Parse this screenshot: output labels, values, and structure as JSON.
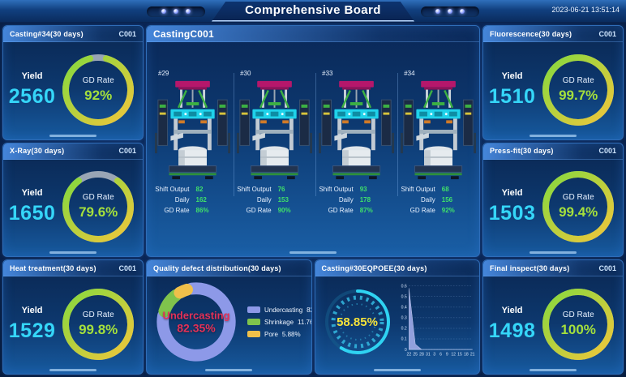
{
  "header": {
    "title": "Comprehensive Board",
    "datetime": "2023-06-21 13:51:14"
  },
  "labels": {
    "yield": "Yield",
    "gd_rate": "GD Rate",
    "shift_output": "Shift Output",
    "daily": "Daily"
  },
  "colors": {
    "yield_cyan": "#35d6f8",
    "gd_text_green": "#a5e03c",
    "ring_gradient": [
      "#86d93e",
      "#f0c63c"
    ],
    "ring_track": "#a9b3bf",
    "donut_colors": [
      "#8d99e8",
      "#7fc34c",
      "#f0c04a"
    ],
    "donut_center_text": "#e53158",
    "gauge_text_yellow": "#f5e23a",
    "gauge_cyan": "#2fd3f2",
    "area_fill": "#98a5e2",
    "value_green": "#3fe06a"
  },
  "stat_panels": [
    {
      "title": "Casting#34(30 days)",
      "code": "C001",
      "yield": "2560",
      "gd_rate_pct": 92,
      "gd_rate_text": "92%"
    },
    {
      "title": "X-Ray(30 days)",
      "code": "C001",
      "yield": "1650",
      "gd_rate_pct": 79.6,
      "gd_rate_text": "79.6%"
    },
    {
      "title": "Heat treatment(30 days)",
      "code": "C001",
      "yield": "1529",
      "gd_rate_pct": 99.8,
      "gd_rate_text": "99.8%"
    },
    {
      "title": "Fluorescence(30 days)",
      "code": "C001",
      "yield": "1510",
      "gd_rate_pct": 99.7,
      "gd_rate_text": "99.7%"
    },
    {
      "title": "Press-fit(30 days)",
      "code": "C001",
      "yield": "1503",
      "gd_rate_pct": 99.4,
      "gd_rate_text": "99.4%"
    },
    {
      "title": "Final inspect(30 days)",
      "code": "C001",
      "yield": "1498",
      "gd_rate_pct": 100,
      "gd_rate_text": "100%"
    }
  ],
  "casting_panel": {
    "title": "CastingC001",
    "machines": [
      {
        "id": "#29",
        "shift_output": "82",
        "daily": "162",
        "gd_rate": "86%"
      },
      {
        "id": "#30",
        "shift_output": "76",
        "daily": "153",
        "gd_rate": "90%"
      },
      {
        "id": "#33",
        "shift_output": "93",
        "daily": "178",
        "gd_rate": "87%"
      },
      {
        "id": "#34",
        "shift_output": "68",
        "daily": "156",
        "gd_rate": "92%"
      }
    ]
  },
  "defect_panel": {
    "title": "Quality defect distribution(30 days)",
    "center_name": "Undercasting",
    "center_value": "82.35%",
    "legend": [
      {
        "name": "Undercasting",
        "value": "82.35%"
      },
      {
        "name": "Shrinkage",
        "value": "11.76%"
      },
      {
        "name": "Pore",
        "value": "5.88%"
      }
    ]
  },
  "oee_panel": {
    "title": "Casting#30EQPOEE(30 days)",
    "gauge_text": "58.85%",
    "gauge_pct": 58.85
  },
  "chart_data": [
    {
      "id": "gd_rings",
      "type": "donut-gauge-set",
      "items": [
        {
          "label": "Casting#34",
          "value": 92
        },
        {
          "label": "X-Ray",
          "value": 79.6
        },
        {
          "label": "Heat treatment",
          "value": 99.8
        },
        {
          "label": "Fluorescence",
          "value": 99.7
        },
        {
          "label": "Press-fit",
          "value": 99.4
        },
        {
          "label": "Final inspect",
          "value": 100
        }
      ],
      "unit": "%",
      "title": "GD Rate"
    },
    {
      "id": "defect_donut",
      "type": "pie",
      "categories": [
        "Undercasting",
        "Shrinkage",
        "Pore"
      ],
      "values": [
        82.35,
        11.76,
        5.88
      ],
      "title": "Quality defect distribution(30 days)",
      "legend_position": "right"
    },
    {
      "id": "oee_gauge",
      "type": "gauge",
      "value": 58.85,
      "unit": "%",
      "title": "Casting#30EQPOEE(30 days)"
    },
    {
      "id": "oee_trend",
      "type": "area",
      "x_labels": [
        "22",
        "25",
        "28",
        "31",
        "3",
        "6",
        "9",
        "12",
        "15",
        "18",
        "21"
      ],
      "values": [
        0.58,
        0.05,
        0,
        0,
        0,
        0,
        0,
        0,
        0,
        0,
        0
      ],
      "ylim": [
        0,
        0.6
      ],
      "y_step": 0.1,
      "grid": true,
      "xlabel": "",
      "ylabel": ""
    }
  ]
}
